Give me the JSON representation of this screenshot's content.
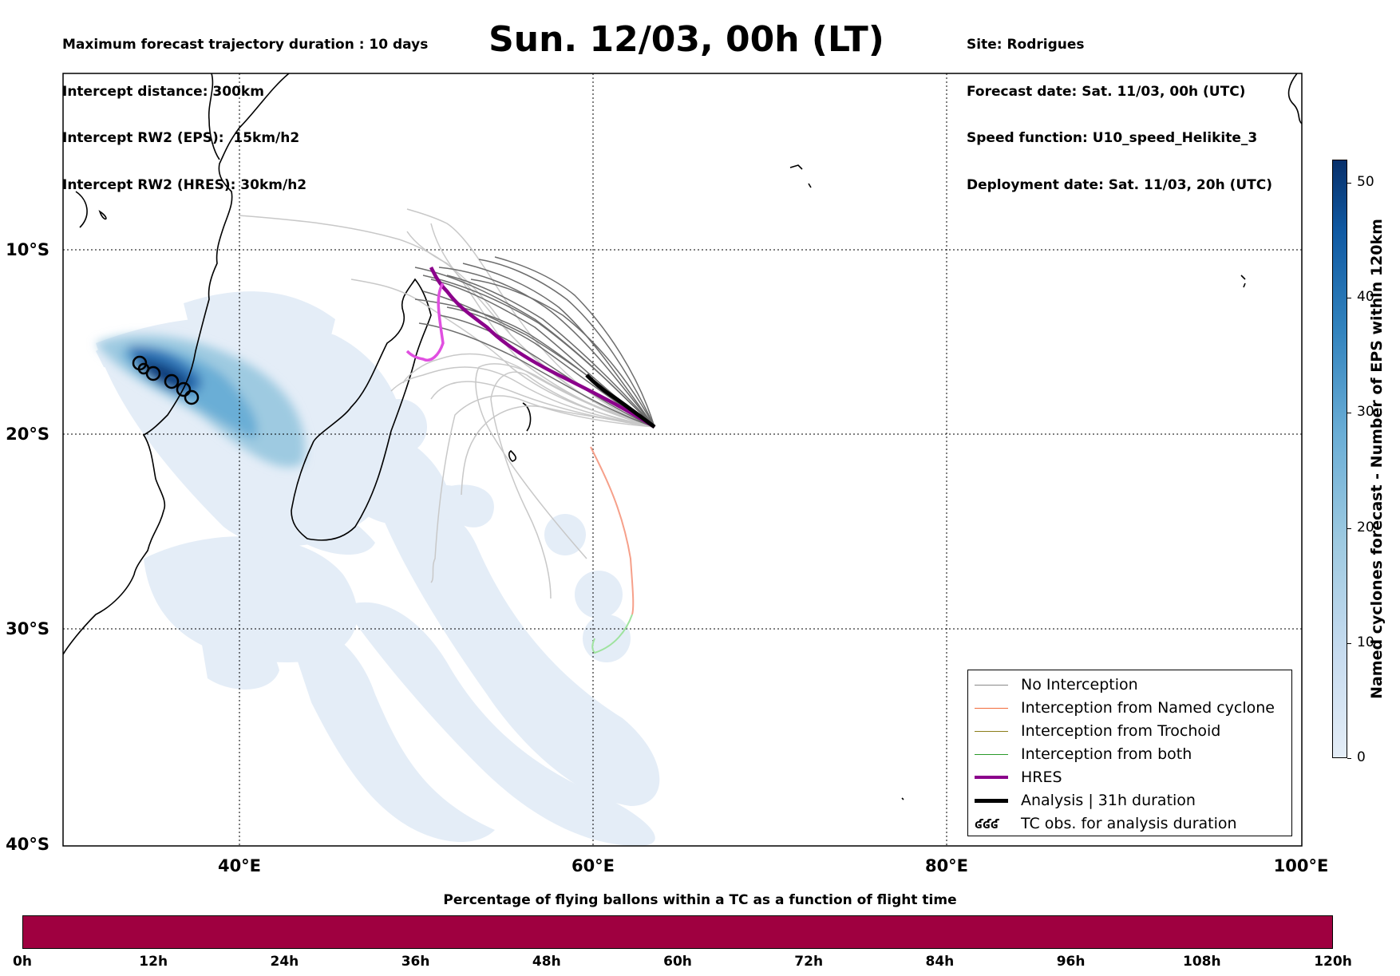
{
  "header": {
    "left": [
      "Maximum forecast trajectory duration : 10 days",
      "Intercept distance: 300km",
      "Intercept RW2 (EPS):  15km/h2",
      "Intercept RW2 (HRES): 30km/h2"
    ],
    "title": "Sun. 12/03, 00h (LT)",
    "right": [
      "Site: Rodrigues",
      "Forecast date: Sat. 11/03, 00h (UTC)",
      "Speed function: U10_speed_Helikite_3",
      "Deployment date: Sat. 11/03, 20h (UTC)"
    ]
  },
  "map": {
    "lon_range": [
      30,
      100
    ],
    "lat_range": [
      -40,
      0
    ],
    "lon_ticks": [
      "40°E",
      "60°E",
      "80°E",
      "100°E"
    ],
    "lat_ticks": [
      "10°S",
      "20°S",
      "30°S",
      "40°S"
    ]
  },
  "legend": [
    {
      "label": "No Interception",
      "color": "#888888",
      "style": "thin"
    },
    {
      "label": "Interception from Named cyclone",
      "color": "#f26b3a",
      "style": "thin"
    },
    {
      "label": "Interception from Trochoid",
      "color": "#8b7d1a",
      "style": "thin"
    },
    {
      "label": "Interception from both",
      "color": "#2a9a2a",
      "style": "thin"
    },
    {
      "label": "HRES",
      "color": "#8b008b",
      "style": "thick"
    },
    {
      "label": "Analysis | 31h duration",
      "color": "#000000",
      "style": "thick"
    },
    {
      "label": "TC obs. for analysis duration",
      "symbol": "ʛʛʛ",
      "style": "symbol"
    }
  ],
  "colorbar": {
    "label": "Named cyclones forecast - Number of EPS within 120km",
    "ticks": [
      "0",
      "10",
      "20",
      "30",
      "40",
      "50"
    ],
    "max": 52
  },
  "bottom": {
    "title": "Percentage of flying ballons within a TC as a function of flight time",
    "ticks": [
      "0h",
      "12h",
      "24h",
      "36h",
      "48h",
      "60h",
      "72h",
      "84h",
      "96h",
      "108h",
      "120h"
    ],
    "bar_color": "#9f0040"
  }
}
